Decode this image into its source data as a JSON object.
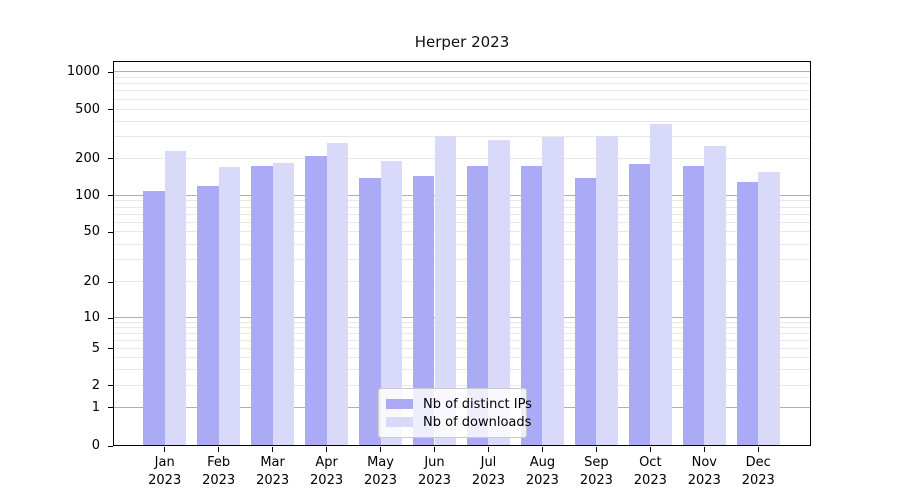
{
  "chart_data": {
    "type": "bar",
    "title": "Herper 2023",
    "categories": [
      "Jan 2023",
      "Feb 2023",
      "Mar 2023",
      "Apr 2023",
      "May 2023",
      "Jun 2023",
      "Jul 2023",
      "Aug 2023",
      "Sep 2023",
      "Oct 2023",
      "Nov 2023",
      "Dec 2023"
    ],
    "series": [
      {
        "name": "Nb of distinct IPs",
        "color": "#aaaaf5",
        "values": [
          110,
          120,
          175,
          210,
          140,
          145,
          175,
          175,
          140,
          180,
          175,
          130
        ]
      },
      {
        "name": "Nb of downloads",
        "color": "#d9d9f9",
        "values": [
          230,
          170,
          185,
          270,
          190,
          305,
          285,
          300,
          305,
          380,
          255,
          155
        ]
      }
    ],
    "xlabel": "",
    "ylabel": "",
    "y_scale": "symlog",
    "ylim": [
      0,
      1250
    ],
    "y_ticks": [
      {
        "value": 0,
        "frac": 0.0
      },
      {
        "value": 1,
        "frac": 0.0996
      },
      {
        "value": 2,
        "frac": 0.156
      },
      {
        "value": 5,
        "frac": 0.2523
      },
      {
        "value": 10,
        "frac": 0.3316
      },
      {
        "value": 20,
        "frac": 0.4248
      },
      {
        "value": 50,
        "frac": 0.5547
      },
      {
        "value": 100,
        "frac": 0.6502
      },
      {
        "value": 200,
        "frac": 0.7464
      },
      {
        "value": 500,
        "frac": 0.8739
      },
      {
        "value": 1000,
        "frac": 0.9709
      }
    ],
    "grid": true,
    "major_grid_values": [
      1,
      10,
      100,
      1000
    ],
    "minor_grid_values": [
      2,
      3,
      4,
      5,
      6,
      7,
      8,
      9,
      20,
      30,
      40,
      50,
      60,
      70,
      80,
      90,
      200,
      300,
      400,
      500,
      600,
      700,
      800,
      900
    ],
    "major_grid_color": "#b0b0b0",
    "minor_grid_color": "#e8e8e8",
    "spine_color": "#000000",
    "background_color": "#ffffff",
    "legend_position": "lower center"
  }
}
